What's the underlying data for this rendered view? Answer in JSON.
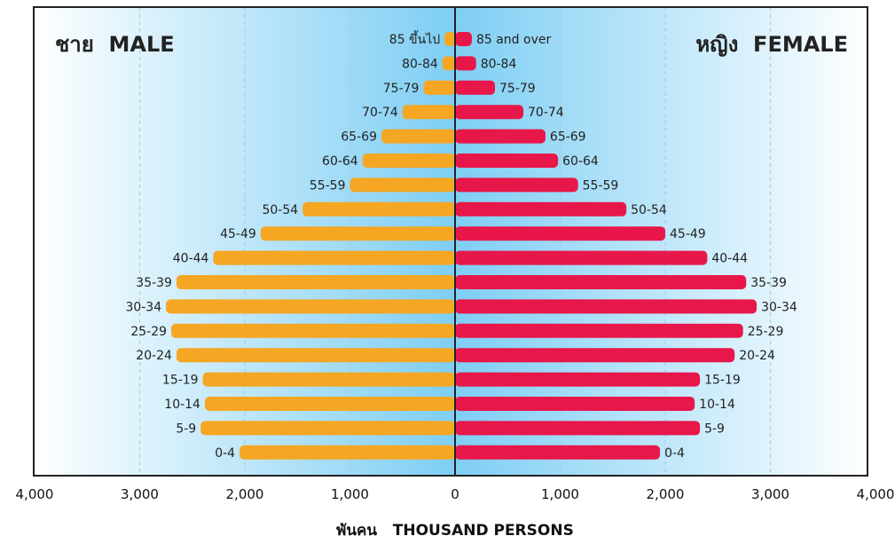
{
  "chart_data": {
    "type": "bar",
    "subtype": "population-pyramid",
    "orientation": "horizontal",
    "male_label": "ชาย  MALE",
    "female_label": "หญิง  FEMALE",
    "xlabel": "พันคน   THOUSAND PERSONS",
    "xlim": [
      -4000,
      4000
    ],
    "x_ticks": [
      -4000,
      -3000,
      -2000,
      -1000,
      0,
      1000,
      2000,
      3000,
      4000
    ],
    "x_tick_labels": [
      "4,000",
      "3,000",
      "2,000",
      "1,000",
      "0",
      "1,000",
      "2,000",
      "3,000",
      "4,000"
    ],
    "grid": "vertical dashed",
    "categories_male": [
      "85 ขึ้นไป",
      "80-84",
      "75-79",
      "70-74",
      "65-69",
      "60-64",
      "55-59",
      "50-54",
      "45-49",
      "40-44",
      "35-39",
      "30-34",
      "25-29",
      "20-24",
      "15-19",
      "10-14",
      "5-9",
      "0-4"
    ],
    "categories_female": [
      "85 and over",
      "80-84",
      "75-79",
      "70-74",
      "65-69",
      "60-64",
      "55-59",
      "50-54",
      "45-49",
      "40-44",
      "35-39",
      "30-34",
      "25-29",
      "20-24",
      "15-19",
      "10-14",
      "5-9",
      "0-4"
    ],
    "series": [
      {
        "name": "ชาย  MALE",
        "color": "#F5A623",
        "values": [
          100,
          120,
          300,
          500,
          700,
          880,
          1000,
          1450,
          1850,
          2300,
          2650,
          2750,
          2700,
          2650,
          2400,
          2380,
          2420,
          2050
        ]
      },
      {
        "name": "หญิง  FEMALE",
        "color": "#E8174A",
        "values": [
          160,
          200,
          380,
          650,
          860,
          980,
          1170,
          1630,
          2000,
          2400,
          2770,
          2870,
          2740,
          2660,
          2330,
          2280,
          2330,
          1950
        ]
      }
    ],
    "colors": {
      "background_center": "#7ECEF4",
      "background_edge": "#FFFFFF",
      "axis": "#222222",
      "grid": "#9BCBE6"
    }
  }
}
